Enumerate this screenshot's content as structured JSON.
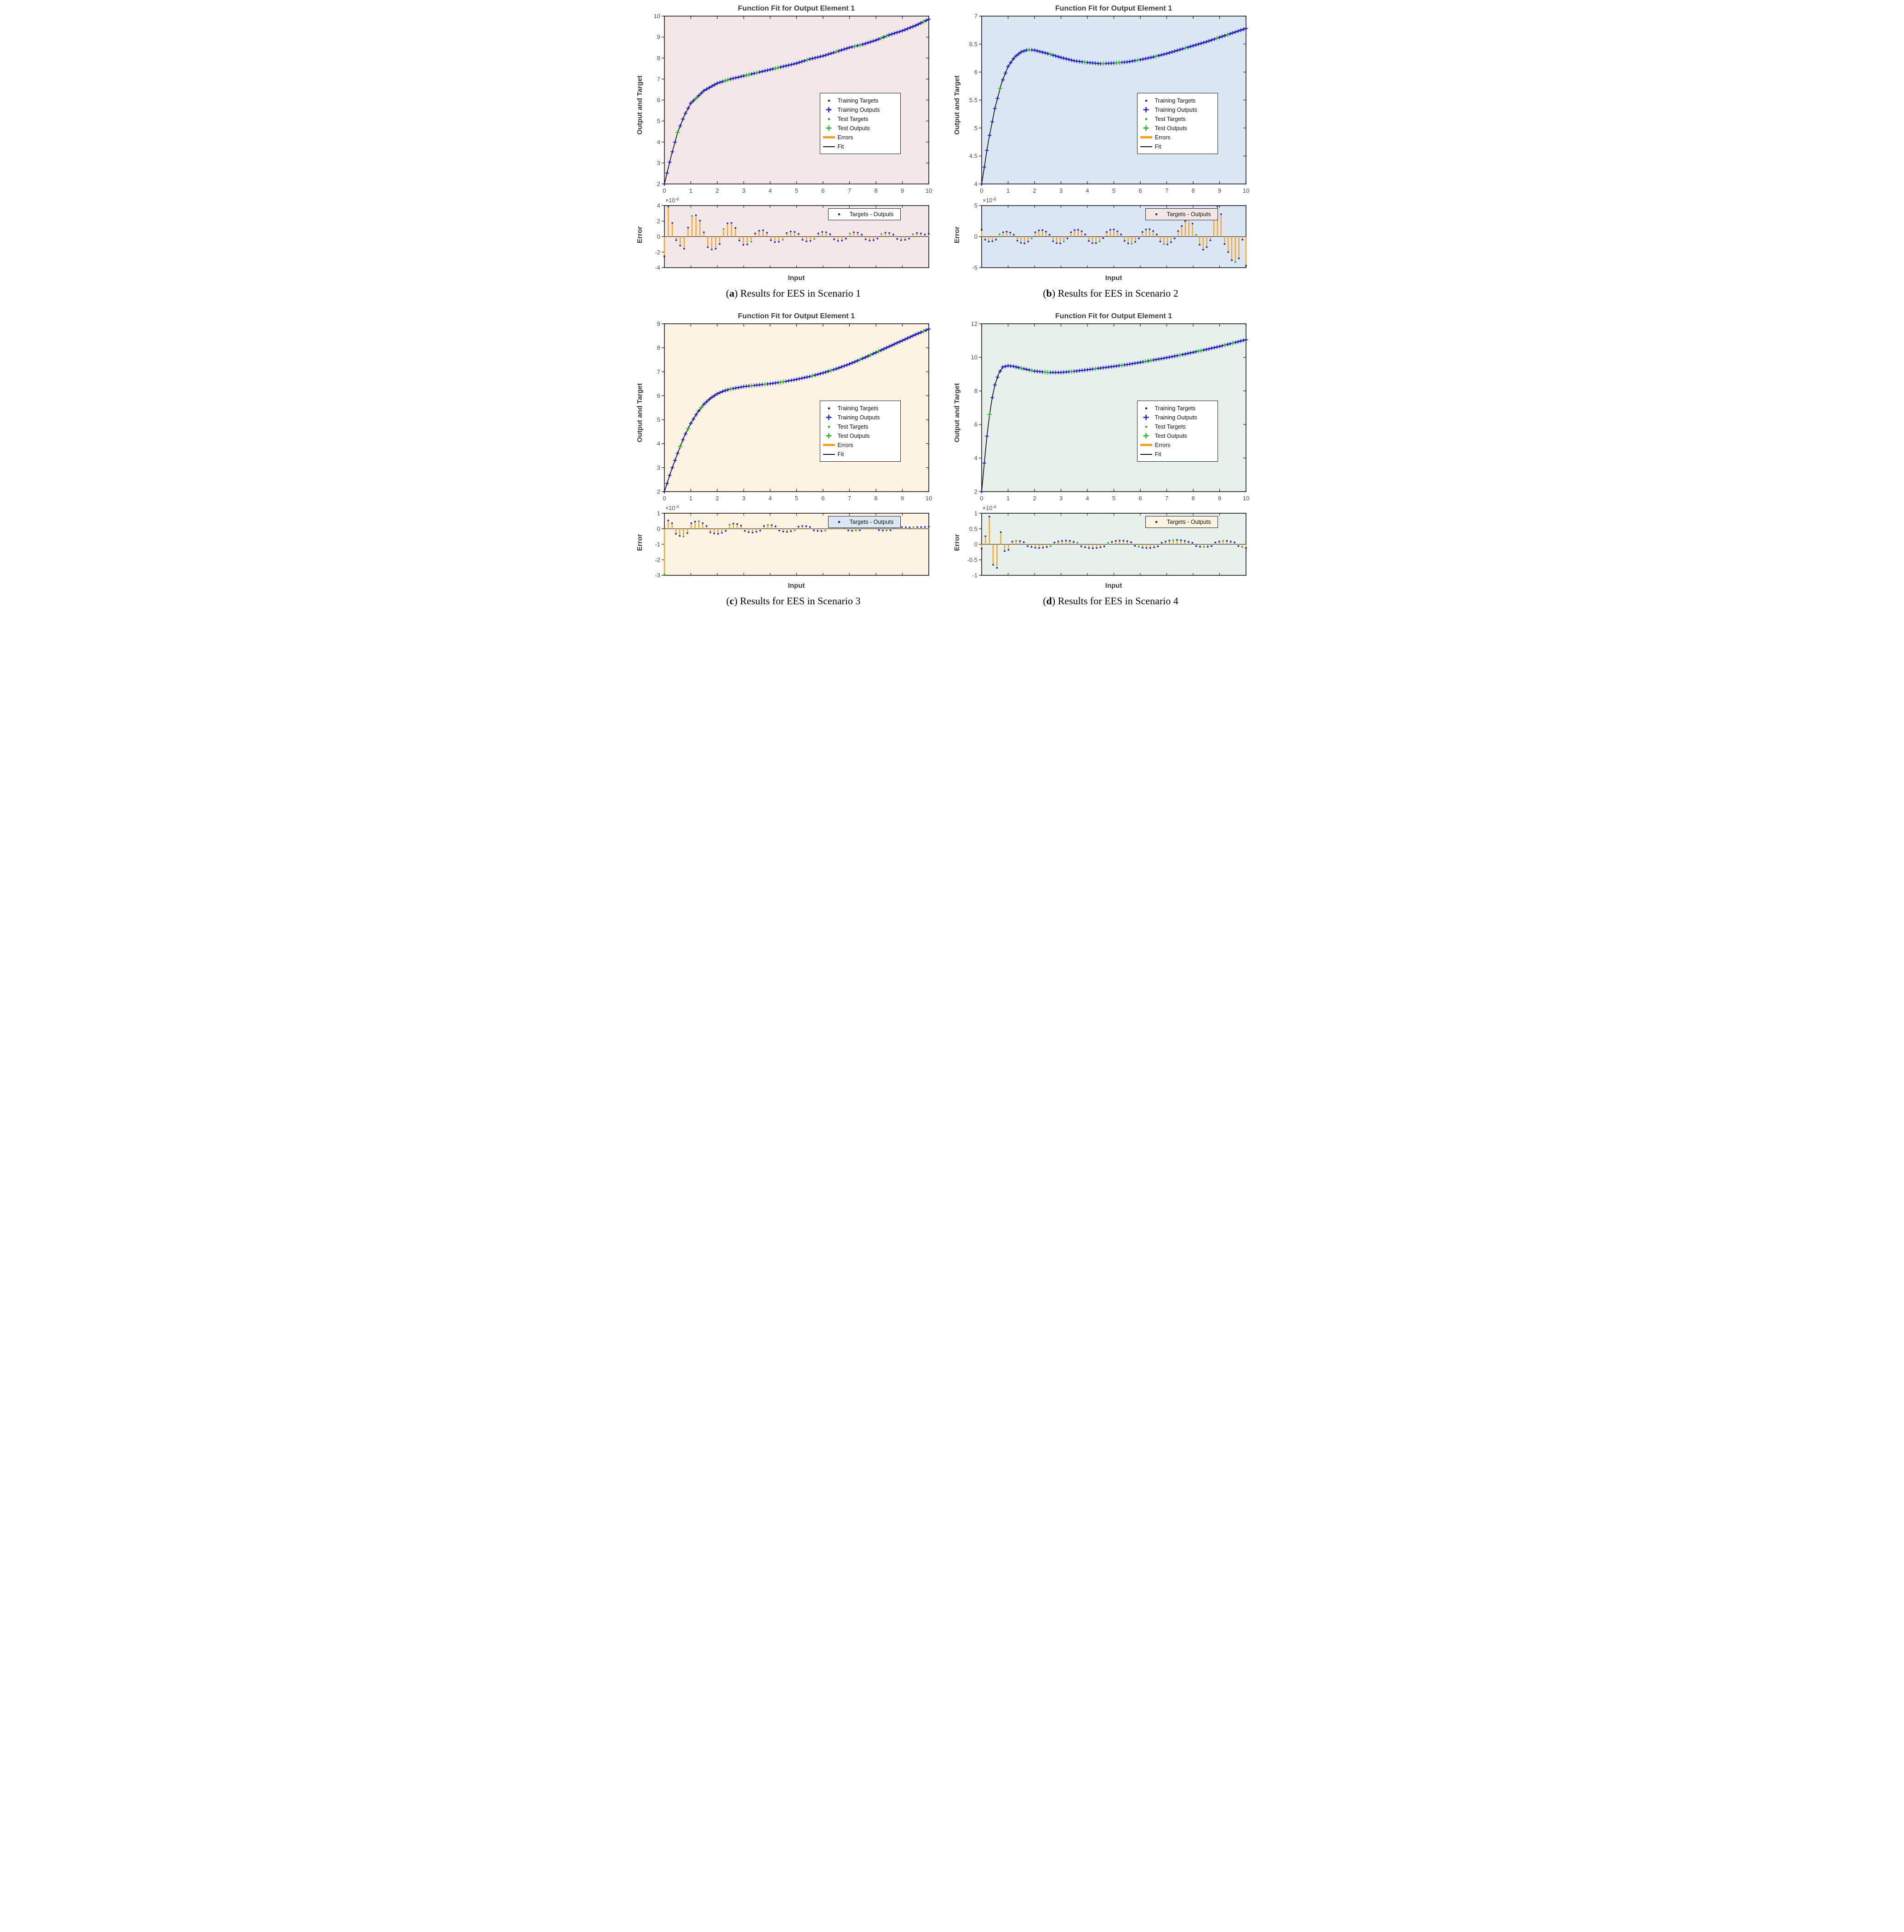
{
  "strings": {
    "fit_title": "Function Fit for Output Element 1",
    "fit_ylabel": "Output and Target",
    "err_ylabel": "Error",
    "xlabel": "Input",
    "exp_base": "×10"
  },
  "colors": {
    "blue": "#1717e0",
    "dotblue": "#1f1fd0",
    "green": "#1cb81c",
    "orange": "#faa21d",
    "fit_line": "#111111",
    "axis": "#1a1a1a",
    "tick_text": "#4a4a4a"
  },
  "legend1": [
    "Training Targets",
    "Training Outputs",
    "Test Targets",
    "Test Outputs",
    "Errors",
    "Fit"
  ],
  "legend2_label": "Targets - Outputs",
  "chart_data": [
    {
      "type": "line+scatter+stem",
      "label_letter": "a",
      "caption": "Results for EES in Scenario 1",
      "bg": "#f3e8e7",
      "legend2_bg": "#ffffff",
      "fit": {
        "xlim": [
          0,
          10
        ],
        "ylim": [
          2,
          10
        ],
        "xticks": [
          0,
          1,
          2,
          3,
          4,
          5,
          6,
          7,
          8,
          9,
          10
        ],
        "yticks": [
          2,
          3,
          4,
          5,
          6,
          7,
          8,
          9,
          10
        ],
        "samples_x": [
          0,
          0.25,
          0.5,
          0.75,
          1,
          1.5,
          2,
          2.5,
          3,
          3.5,
          4,
          4.5,
          5,
          5.5,
          6,
          6.5,
          7,
          7.5,
          8,
          8.5,
          9,
          9.5,
          10
        ],
        "samples_y": [
          2.0,
          3.3,
          4.45,
          5.25,
          5.85,
          6.45,
          6.8,
          7.0,
          7.15,
          7.3,
          7.45,
          7.6,
          7.75,
          7.95,
          8.1,
          8.3,
          8.5,
          8.65,
          8.85,
          9.1,
          9.3,
          9.55,
          9.85
        ],
        "marker_step": 0.1,
        "test_x": [
          0.5,
          1.2,
          2.3,
          2.4,
          3.1,
          3.2,
          3.5,
          4.2,
          4.3,
          5.4,
          6.5,
          7.2,
          7.4,
          8.2,
          8.4,
          9.8
        ]
      },
      "error": {
        "exp": "-6",
        "ylim": [
          -4,
          4
        ],
        "yticks": [
          -4,
          -2,
          0,
          2,
          4
        ],
        "values": [
          -2.4,
          4.0,
          1.6,
          -0.3,
          -1.0,
          -1.4,
          1.0,
          2.5,
          2.6,
          1.9,
          0.4,
          -1.2,
          -1.5,
          -1.4,
          -0.8,
          0.8,
          1.55,
          1.6,
          0.95,
          -0.35,
          -0.9,
          -0.85,
          -0.5,
          0.25,
          0.6,
          0.65,
          0.35,
          -0.3,
          -0.55,
          -0.5,
          -0.25,
          0.3,
          0.5,
          0.45,
          0.2,
          -0.25,
          -0.45,
          -0.4,
          -0.15,
          0.25,
          0.45,
          0.4,
          0.15,
          -0.2,
          -0.4,
          -0.35,
          -0.1,
          0.25,
          0.4,
          0.35,
          0.1,
          -0.2,
          -0.35,
          -0.3,
          -0.1,
          0.2,
          0.35,
          0.3,
          0.1,
          -0.15,
          -0.3,
          -0.25,
          -0.1,
          0.15,
          0.3,
          0.25,
          0.1,
          0.2
        ],
        "test_idx": [
          7,
          15,
          22,
          30,
          38,
          47,
          55,
          63
        ]
      }
    },
    {
      "type": "line+scatter+stem",
      "label_letter": "b",
      "caption": "Results for EES in Scenario 2",
      "bg": "#dbe7f5",
      "legend2_bg": "#f3e8e7",
      "fit": {
        "xlim": [
          0,
          10
        ],
        "ylim": [
          4,
          7
        ],
        "xticks": [
          0,
          1,
          2,
          3,
          4,
          5,
          6,
          7,
          8,
          9,
          10
        ],
        "yticks": [
          4,
          4.5,
          5,
          5.5,
          6,
          6.5,
          7
        ],
        "samples_x": [
          0,
          0.25,
          0.5,
          0.75,
          1,
          1.25,
          1.5,
          1.75,
          2,
          2.5,
          3,
          3.5,
          4,
          4.5,
          5,
          5.5,
          6,
          6.5,
          7,
          7.5,
          8,
          8.5,
          9,
          9.5,
          10
        ],
        "samples_y": [
          4.0,
          4.75,
          5.35,
          5.8,
          6.1,
          6.27,
          6.36,
          6.4,
          6.39,
          6.33,
          6.26,
          6.2,
          6.17,
          6.15,
          6.16,
          6.18,
          6.22,
          6.27,
          6.33,
          6.4,
          6.47,
          6.54,
          6.62,
          6.7,
          6.78
        ],
        "marker_step": 0.1,
        "test_x": [
          0.7,
          1.8,
          2.6,
          3.9,
          4.6,
          5.1,
          5.2,
          5.9,
          6.6,
          7.7,
          8.9,
          9.3
        ],
        "note_peak": {
          "x": 1.8,
          "y": 6.4
        },
        "note_min": {
          "x": 4.5,
          "y": 6.15
        }
      },
      "error": {
        "exp": "-6",
        "ylim": [
          -5,
          5
        ],
        "yticks": [
          -5,
          0,
          5
        ],
        "values": [
          0.9,
          -0.3,
          -0.6,
          -0.55,
          -0.3,
          0.2,
          0.5,
          0.6,
          0.45,
          0.1,
          -0.45,
          -0.8,
          -0.9,
          -0.6,
          -0.1,
          0.5,
          0.8,
          0.85,
          0.6,
          0.1,
          -0.55,
          -0.85,
          -0.9,
          -0.6,
          -0.1,
          0.5,
          0.85,
          0.9,
          0.65,
          0.15,
          -0.5,
          -0.85,
          -0.85,
          -0.55,
          -0.05,
          0.55,
          0.9,
          0.95,
          0.65,
          0.15,
          -0.5,
          -0.9,
          -0.95,
          -0.65,
          -0.1,
          0.55,
          0.95,
          1.0,
          0.7,
          0.15,
          -0.6,
          -1.0,
          -1.05,
          -0.7,
          -0.1,
          0.7,
          1.5,
          2.3,
          2.6,
          1.9,
          0.1,
          -1.1,
          -1.9,
          -1.5,
          -0.4,
          3.9,
          5.0,
          3.4,
          -1.0,
          -2.3,
          -3.6,
          -3.9,
          -3.3,
          -0.3,
          -4.5
        ],
        "test_idx": [
          5,
          14,
          23,
          33,
          42,
          51,
          60,
          65,
          71
        ]
      }
    },
    {
      "type": "line+scatter+stem",
      "label_letter": "c",
      "caption": "Results for EES in Scenario 3",
      "bg": "#fdf3e2",
      "legend2_bg": "#dbe7f5",
      "fit": {
        "xlim": [
          0,
          10
        ],
        "ylim": [
          2,
          9
        ],
        "xticks": [
          0,
          1,
          2,
          3,
          4,
          5,
          6,
          7,
          8,
          9,
          10
        ],
        "yticks": [
          2,
          3,
          4,
          5,
          6,
          7,
          8,
          9
        ],
        "samples_x": [
          0,
          0.25,
          0.5,
          0.75,
          1,
          1.25,
          1.5,
          1.75,
          2,
          2.25,
          2.5,
          3,
          3.5,
          4,
          4.5,
          5,
          5.5,
          6,
          6.5,
          7,
          7.5,
          8,
          8.5,
          9,
          9.5,
          10
        ],
        "samples_y": [
          2.0,
          2.85,
          3.6,
          4.3,
          4.85,
          5.3,
          5.65,
          5.9,
          6.08,
          6.2,
          6.28,
          6.38,
          6.44,
          6.5,
          6.58,
          6.68,
          6.8,
          6.95,
          7.12,
          7.32,
          7.55,
          7.8,
          8.05,
          8.3,
          8.55,
          8.78
        ],
        "marker_step": 0.1,
        "test_x": [
          0.6,
          0.9,
          1.4,
          2.5,
          3.3,
          3.8,
          4.4,
          4.5,
          5.6,
          6.3,
          7.4,
          7.8,
          8.1,
          9.8
        ]
      },
      "error": {
        "exp": "-4",
        "ylim": [
          -3,
          1
        ],
        "yticks": [
          -3,
          -2,
          -1,
          0,
          1
        ],
        "values": [
          -3.0,
          0.45,
          0.28,
          -0.25,
          -0.38,
          -0.42,
          -0.2,
          0.28,
          0.38,
          0.4,
          0.28,
          0.1,
          -0.15,
          -0.22,
          -0.25,
          -0.18,
          -0.06,
          0.18,
          0.25,
          0.22,
          0.12,
          -0.06,
          -0.14,
          -0.16,
          -0.12,
          -0.04,
          0.1,
          0.16,
          0.15,
          0.08,
          -0.04,
          -0.1,
          -0.12,
          -0.08,
          -0.02,
          0.06,
          0.1,
          0.09,
          0.04,
          -0.03,
          -0.06,
          -0.07,
          -0.04,
          0.02,
          0.05,
          0.06,
          0.04,
          0.01,
          -0.03,
          -0.05,
          -0.04,
          -0.02,
          0.02,
          0.04,
          0.04,
          0.02,
          -0.01,
          -0.03,
          -0.03,
          -0.02,
          0.01,
          0.03,
          0.03,
          0.02,
          0.01,
          0.02,
          0.03,
          0.03,
          0.04,
          0.05
        ],
        "test_idx": [
          0,
          5,
          9,
          17,
          27,
          34,
          42,
          50,
          58,
          65
        ]
      }
    },
    {
      "type": "line+scatter+stem",
      "label_letter": "d",
      "caption": "Results for EES in Scenario 4",
      "bg": "#e7f0ea",
      "legend2_bg": "#fdf3e2",
      "fit": {
        "xlim": [
          0,
          10
        ],
        "ylim": [
          2,
          12
        ],
        "xticks": [
          0,
          1,
          2,
          3,
          4,
          5,
          6,
          7,
          8,
          9,
          10
        ],
        "yticks": [
          2,
          4,
          6,
          8,
          10,
          12
        ],
        "samples_x": [
          0,
          0.1,
          0.2,
          0.3,
          0.4,
          0.5,
          0.65,
          0.8,
          1,
          1.25,
          1.5,
          2,
          2.5,
          3,
          3.5,
          4,
          4.5,
          5,
          5.5,
          6,
          6.5,
          7,
          7.5,
          8,
          8.5,
          9,
          9.5,
          10
        ],
        "samples_y": [
          2.0,
          3.7,
          5.3,
          6.6,
          7.6,
          8.35,
          9.05,
          9.42,
          9.5,
          9.45,
          9.35,
          9.18,
          9.1,
          9.1,
          9.17,
          9.26,
          9.36,
          9.46,
          9.57,
          9.7,
          9.84,
          9.98,
          10.13,
          10.3,
          10.47,
          10.65,
          10.85,
          11.05
        ],
        "marker_step": 0.1,
        "test_x": [
          0.3,
          1.5,
          1.9,
          2.4,
          2.5,
          3.4,
          4.3,
          5.3,
          6.2,
          6.4,
          7.5,
          8.2,
          8.3,
          9.2,
          9.5
        ]
      },
      "error": {
        "exp": "-4",
        "ylim": [
          -1,
          1
        ],
        "yticks": [
          -1,
          -0.5,
          0,
          0.5,
          1
        ],
        "values": [
          -0.1,
          0.22,
          0.85,
          -0.62,
          -0.72,
          0.35,
          -0.18,
          -0.14,
          0.05,
          0.07,
          0.06,
          0.03,
          -0.02,
          -0.05,
          -0.07,
          -0.08,
          -0.07,
          -0.05,
          -0.02,
          0.02,
          0.05,
          0.07,
          0.08,
          0.07,
          0.04,
          0.01,
          -0.03,
          -0.06,
          -0.08,
          -0.09,
          -0.08,
          -0.06,
          -0.03,
          0.01,
          0.04,
          0.07,
          0.08,
          0.08,
          0.06,
          0.03,
          -0.01,
          -0.04,
          -0.07,
          -0.08,
          -0.08,
          -0.06,
          -0.03,
          0.01,
          0.05,
          0.08,
          0.09,
          0.1,
          0.09,
          0.07,
          0.04,
          0.01,
          -0.02,
          -0.04,
          -0.05,
          -0.04,
          -0.02,
          0.02,
          0.05,
          0.07,
          0.07,
          0.05,
          0.02,
          -0.02,
          -0.05,
          -0.08
        ],
        "test_idx": [
          9,
          18,
          25,
          33,
          41,
          50,
          58,
          63,
          68
        ]
      }
    }
  ]
}
